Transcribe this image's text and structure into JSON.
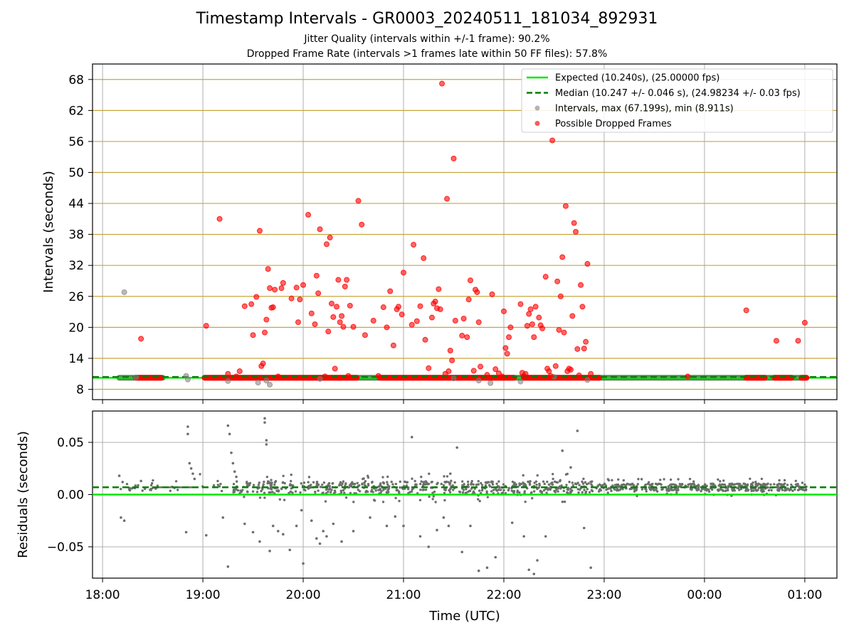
{
  "figure": {
    "title": "Timestamp Intervals - GR0003_20240511_181034_892931",
    "subtitle_jitter": "Jitter Quality (intervals within +/-1 frame): 90.2%",
    "subtitle_dropped": "Dropped Frame Rate (intervals >1 frames late within 50 FF files): 57.8%"
  },
  "colors": {
    "expected": "#00e600",
    "median": "#008000",
    "interval_points": "#808080",
    "dropped_points": "#ff0000",
    "gold_grid": "#c8a63c",
    "grid": "#b0b0b0"
  },
  "chart_data": [
    {
      "type": "scatter",
      "ylabel": "Intervals (seconds)",
      "x_hours": [
        18.0,
        25.0
      ],
      "xlim_hours": [
        17.9,
        25.32
      ],
      "ylim": [
        6,
        71
      ],
      "yticks": [
        8,
        14,
        20,
        26,
        32,
        38,
        44,
        50,
        56,
        62,
        68
      ],
      "ytick_labels": [
        "8",
        "14",
        "20",
        "26",
        "32",
        "38",
        "44",
        "50",
        "56",
        "62",
        "68"
      ],
      "grid": true,
      "legend_position": "top-right",
      "legend": [
        {
          "key": "expected",
          "label": "Expected (10.240s), (25.00000 fps)",
          "style": "line-solid"
        },
        {
          "key": "median",
          "label": "Median (10.247 +/- 0.046 s), (24.98234 +/- 0.03 fps)",
          "style": "line-dashed"
        },
        {
          "key": "intervals",
          "label": "Intervals, max (67.199s), min (8.911s)",
          "style": "point-gray"
        },
        {
          "key": "dropped",
          "label": "Possible Dropped Frames",
          "style": "point-red"
        }
      ],
      "expected_value": 10.24,
      "median_value": 10.247,
      "baseline_segments": [
        {
          "start": "18:10",
          "end": "18:36"
        },
        {
          "start": "19:01",
          "end": "20:45"
        },
        {
          "start": "20:45",
          "end": "20:46"
        },
        {
          "start": "20:47",
          "end": "22:10"
        },
        {
          "start": "22:10",
          "end": "22:57"
        },
        {
          "start": "22:57",
          "end": "00:25"
        },
        {
          "start": "00:25",
          "end": "00:35"
        },
        {
          "start": "00:35",
          "end": "00:42"
        },
        {
          "start": "00:42",
          "end": "01:01"
        }
      ],
      "red_baseline_segments": [
        {
          "start": "18:20",
          "end": "18:35"
        },
        {
          "start": "19:01",
          "end": "20:32"
        },
        {
          "start": "20:46",
          "end": "22:06"
        },
        {
          "start": "22:12",
          "end": "22:57"
        },
        {
          "start": "00:25",
          "end": "00:36"
        },
        {
          "start": "00:42",
          "end": "00:52"
        },
        {
          "start": "00:58",
          "end": "01:01"
        }
      ],
      "gray_points": [
        [
          "18:13",
          26.8
        ],
        [
          "18:20",
          10.3
        ],
        [
          "18:50",
          10.6
        ],
        [
          "18:51",
          9.9
        ],
        [
          "19:15",
          9.6
        ],
        [
          "19:33",
          9.3
        ],
        [
          "19:38",
          9.7
        ],
        [
          "19:40",
          8.9
        ],
        [
          "20:10",
          10.0
        ],
        [
          "21:30",
          10.1
        ],
        [
          "21:45",
          9.7
        ],
        [
          "21:52",
          9.2
        ],
        [
          "22:10",
          9.5
        ],
        [
          "22:50",
          9.8
        ],
        [
          "22:30",
          10.4
        ]
      ],
      "dropped_points": [
        [
          "18:23",
          17.8
        ],
        [
          "19:02",
          20.3
        ],
        [
          "19:10",
          41.0
        ],
        [
          "19:15",
          11.0
        ],
        [
          "19:20",
          10.5
        ],
        [
          "19:22",
          11.5
        ],
        [
          "19:25",
          24.1
        ],
        [
          "19:29",
          24.5
        ],
        [
          "19:30",
          18.5
        ],
        [
          "19:32",
          25.9
        ],
        [
          "19:34",
          38.7
        ],
        [
          "19:35",
          12.5
        ],
        [
          "19:36",
          13.0
        ],
        [
          "19:37",
          19.0
        ],
        [
          "19:38",
          21.5
        ],
        [
          "19:39",
          31.3
        ],
        [
          "19:40",
          27.6
        ],
        [
          "19:41",
          23.8
        ],
        [
          "19:42",
          23.9
        ],
        [
          "19:43",
          27.3
        ],
        [
          "19:45",
          10.5
        ],
        [
          "19:47",
          27.6
        ],
        [
          "19:48",
          28.6
        ],
        [
          "19:53",
          25.6
        ],
        [
          "19:56",
          27.7
        ],
        [
          "19:57",
          21.0
        ],
        [
          "19:58",
          25.4
        ],
        [
          "20:00",
          28.2
        ],
        [
          "20:03",
          41.8
        ],
        [
          "20:05",
          22.7
        ],
        [
          "20:07",
          20.6
        ],
        [
          "20:08",
          30.0
        ],
        [
          "20:09",
          26.6
        ],
        [
          "20:10",
          39.0
        ],
        [
          "20:13",
          10.5
        ],
        [
          "20:14",
          36.1
        ],
        [
          "20:15",
          19.2
        ],
        [
          "20:16",
          37.4
        ],
        [
          "20:17",
          24.6
        ],
        [
          "20:18",
          22.0
        ],
        [
          "20:19",
          12.0
        ],
        [
          "20:20",
          24.0
        ],
        [
          "20:21",
          29.2
        ],
        [
          "20:22",
          21.0
        ],
        [
          "20:23",
          22.2
        ],
        [
          "20:24",
          20.1
        ],
        [
          "20:25",
          27.9
        ],
        [
          "20:26",
          29.2
        ],
        [
          "20:27",
          10.6
        ],
        [
          "20:28",
          24.2
        ],
        [
          "20:30",
          20.1
        ],
        [
          "20:33",
          44.5
        ],
        [
          "20:35",
          39.9
        ],
        [
          "20:37",
          18.5
        ],
        [
          "20:42",
          21.3
        ],
        [
          "20:45",
          10.6
        ],
        [
          "20:48",
          23.9
        ],
        [
          "20:50",
          20.0
        ],
        [
          "20:52",
          27.0
        ],
        [
          "20:54",
          16.5
        ],
        [
          "20:56",
          23.5
        ],
        [
          "20:57",
          24.0
        ],
        [
          "20:59",
          22.5
        ],
        [
          "21:00",
          30.6
        ],
        [
          "21:05",
          20.5
        ],
        [
          "21:06",
          36.0
        ],
        [
          "21:08",
          21.2
        ],
        [
          "21:10",
          24.1
        ],
        [
          "21:12",
          33.4
        ],
        [
          "21:13",
          17.6
        ],
        [
          "21:15",
          12.1
        ],
        [
          "21:17",
          21.9
        ],
        [
          "21:18",
          24.6
        ],
        [
          "21:19",
          25.0
        ],
        [
          "21:20",
          23.7
        ],
        [
          "21:21",
          27.4
        ],
        [
          "21:22",
          23.5
        ],
        [
          "21:23",
          67.2
        ],
        [
          "21:25",
          11.0
        ],
        [
          "21:26",
          44.9
        ],
        [
          "21:27",
          11.5
        ],
        [
          "21:28",
          15.5
        ],
        [
          "21:29",
          13.6
        ],
        [
          "21:30",
          52.7
        ],
        [
          "21:31",
          21.3
        ],
        [
          "21:35",
          18.4
        ],
        [
          "21:36",
          21.7
        ],
        [
          "21:38",
          18.1
        ],
        [
          "21:39",
          25.4
        ],
        [
          "21:40",
          29.1
        ],
        [
          "21:42",
          11.6
        ],
        [
          "21:43",
          27.3
        ],
        [
          "21:44",
          26.8
        ],
        [
          "21:45",
          21.0
        ],
        [
          "21:46",
          12.4
        ],
        [
          "21:50",
          10.8
        ],
        [
          "21:53",
          26.4
        ],
        [
          "21:55",
          11.9
        ],
        [
          "21:57",
          11.1
        ],
        [
          "21:59",
          10.5
        ],
        [
          "22:00",
          23.1
        ],
        [
          "22:01",
          16.0
        ],
        [
          "22:02",
          14.9
        ],
        [
          "22:03",
          18.1
        ],
        [
          "22:04",
          20.0
        ],
        [
          "22:10",
          24.5
        ],
        [
          "22:11",
          11.2
        ],
        [
          "22:12",
          10.6
        ],
        [
          "22:13",
          11.0
        ],
        [
          "22:14",
          20.3
        ],
        [
          "22:15",
          22.6
        ],
        [
          "22:16",
          23.5
        ],
        [
          "22:17",
          20.6
        ],
        [
          "22:18",
          18.1
        ],
        [
          "22:19",
          24.0
        ],
        [
          "22:21",
          21.9
        ],
        [
          "22:22",
          20.4
        ],
        [
          "22:23",
          19.8
        ],
        [
          "22:25",
          29.8
        ],
        [
          "22:26",
          12.0
        ],
        [
          "22:27",
          11.5
        ],
        [
          "22:28",
          10.6
        ],
        [
          "22:29",
          56.2
        ],
        [
          "22:31",
          12.5
        ],
        [
          "22:32",
          28.9
        ],
        [
          "22:33",
          19.5
        ],
        [
          "22:34",
          26.0
        ],
        [
          "22:35",
          33.6
        ],
        [
          "22:36",
          19.0
        ],
        [
          "22:37",
          43.5
        ],
        [
          "22:38",
          11.5
        ],
        [
          "22:39",
          12.0
        ],
        [
          "22:40",
          11.8
        ],
        [
          "22:41",
          22.2
        ],
        [
          "22:42",
          40.2
        ],
        [
          "22:43",
          38.5
        ],
        [
          "22:44",
          15.8
        ],
        [
          "22:45",
          10.7
        ],
        [
          "22:46",
          28.2
        ],
        [
          "22:47",
          24.0
        ],
        [
          "22:48",
          15.9
        ],
        [
          "22:49",
          17.2
        ],
        [
          "22:50",
          32.3
        ],
        [
          "22:52",
          11.0
        ],
        [
          "23:50",
          10.5
        ],
        [
          "00:25",
          23.3
        ],
        [
          "00:43",
          17.4
        ],
        [
          "00:56",
          17.4
        ],
        [
          "01:00",
          20.9
        ]
      ]
    },
    {
      "type": "scatter",
      "ylabel": "Residuals (seconds)",
      "xlabel": "Time (UTC)",
      "xlim_hours": [
        17.9,
        25.32
      ],
      "ylim": [
        -0.08,
        0.08
      ],
      "yticks": [
        -0.05,
        0.0,
        0.05
      ],
      "ytick_labels": [
        "−0.05",
        "0.00",
        "0.05"
      ],
      "xticks_hours": [
        18,
        19,
        20,
        21,
        22,
        23,
        24,
        25
      ],
      "xtick_labels": [
        "18:00",
        "19:00",
        "20:00",
        "21:00",
        "22:00",
        "23:00",
        "00:00",
        "01:00"
      ],
      "grid": true,
      "expected_value": 0.0,
      "median_value": 0.007,
      "baseline_value": 0.007,
      "points": [
        [
          "18:10",
          0.018
        ],
        [
          "18:11",
          -0.022
        ],
        [
          "18:13",
          -0.025
        ],
        [
          "18:12",
          0.012
        ],
        [
          "18:23",
          0.013
        ],
        [
          "18:51",
          0.065
        ],
        [
          "18:51",
          0.058
        ],
        [
          "18:52",
          0.03
        ],
        [
          "18:53",
          0.025
        ],
        [
          "18:54",
          0.02
        ],
        [
          "18:55",
          0.015
        ],
        [
          "18:50",
          -0.036
        ],
        [
          "19:02",
          -0.039
        ],
        [
          "19:15",
          0.066
        ],
        [
          "19:16",
          0.058
        ],
        [
          "19:17",
          0.04
        ],
        [
          "19:18",
          0.03
        ],
        [
          "19:19",
          0.022
        ],
        [
          "19:20",
          0.017
        ],
        [
          "19:15",
          -0.069
        ],
        [
          "19:12",
          -0.022
        ],
        [
          "19:25",
          -0.028
        ],
        [
          "19:30",
          -0.036
        ],
        [
          "19:34",
          -0.045
        ],
        [
          "19:37",
          0.073
        ],
        [
          "19:37",
          0.069
        ],
        [
          "19:38",
          0.052
        ],
        [
          "19:38",
          0.048
        ],
        [
          "19:40",
          -0.054
        ],
        [
          "19:42",
          -0.03
        ],
        [
          "19:45",
          -0.035
        ],
        [
          "19:48",
          -0.038
        ],
        [
          "19:52",
          -0.053
        ],
        [
          "19:56",
          -0.03
        ],
        [
          "19:59",
          -0.015
        ],
        [
          "20:00",
          -0.066
        ],
        [
          "20:05",
          -0.025
        ],
        [
          "20:08",
          -0.042
        ],
        [
          "20:10",
          -0.047
        ],
        [
          "20:12",
          -0.035
        ],
        [
          "20:14",
          -0.04
        ],
        [
          "20:18",
          -0.028
        ],
        [
          "20:23",
          -0.045
        ],
        [
          "20:30",
          -0.035
        ],
        [
          "20:40",
          -0.022
        ],
        [
          "20:50",
          -0.03
        ],
        [
          "20:55",
          -0.021
        ],
        [
          "21:00",
          -0.03
        ],
        [
          "21:05",
          0.055
        ],
        [
          "21:10",
          -0.04
        ],
        [
          "21:15",
          -0.05
        ],
        [
          "21:20",
          -0.034
        ],
        [
          "21:24",
          -0.022
        ],
        [
          "21:27",
          -0.03
        ],
        [
          "21:28",
          0.02
        ],
        [
          "21:32",
          0.045
        ],
        [
          "21:35",
          -0.055
        ],
        [
          "21:40",
          -0.03
        ],
        [
          "21:45",
          -0.073
        ],
        [
          "21:50",
          -0.07
        ],
        [
          "21:55",
          -0.06
        ],
        [
          "22:05",
          -0.027
        ],
        [
          "22:12",
          -0.04
        ],
        [
          "22:15",
          -0.072
        ],
        [
          "22:18",
          -0.076
        ],
        [
          "22:20",
          -0.063
        ],
        [
          "22:25",
          -0.04
        ],
        [
          "22:35",
          0.042
        ],
        [
          "22:40",
          0.026
        ],
        [
          "22:44",
          0.061
        ],
        [
          "22:48",
          -0.032
        ],
        [
          "22:52",
          -0.07
        ]
      ]
    }
  ]
}
